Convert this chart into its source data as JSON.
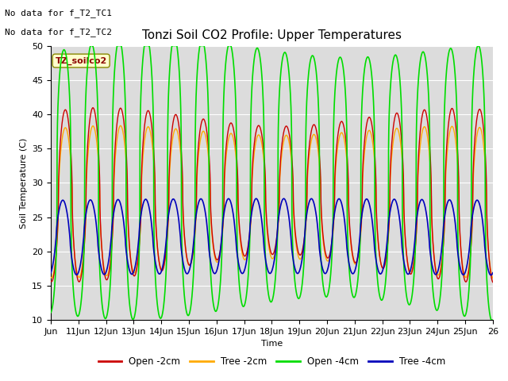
{
  "title": "Tonzi Soil CO2 Profile: Upper Temperatures",
  "xlabel": "Time",
  "ylabel": "Soil Temperature (C)",
  "ylim": [
    10,
    50
  ],
  "xlim": [
    0,
    16
  ],
  "xtick_labels": [
    "Jun",
    "11Jun",
    "12Jun",
    "13Jun",
    "14Jun",
    "15Jun",
    "16Jun",
    "17Jun",
    "18Jun",
    "19Jun",
    "20Jun",
    "21Jun",
    "22Jun",
    "23Jun",
    "24Jun",
    "25Jun",
    "26"
  ],
  "xtick_positions": [
    0,
    1,
    2,
    3,
    4,
    5,
    6,
    7,
    8,
    9,
    10,
    11,
    12,
    13,
    14,
    15,
    16
  ],
  "no_data_text1": "No data for f_T2_TC1",
  "no_data_text2": "No data for f_T2_TC2",
  "file_label": "TZ_soilco2",
  "legend_labels": [
    "Open -2cm",
    "Tree -2cm",
    "Open -4cm",
    "Tree -4cm"
  ],
  "line_colors": [
    "#cc0000",
    "#ffaa00",
    "#00dd00",
    "#0000bb"
  ],
  "bg_color": "#dcdcdc",
  "title_fontsize": 11,
  "label_fontsize": 8,
  "tick_fontsize": 8
}
